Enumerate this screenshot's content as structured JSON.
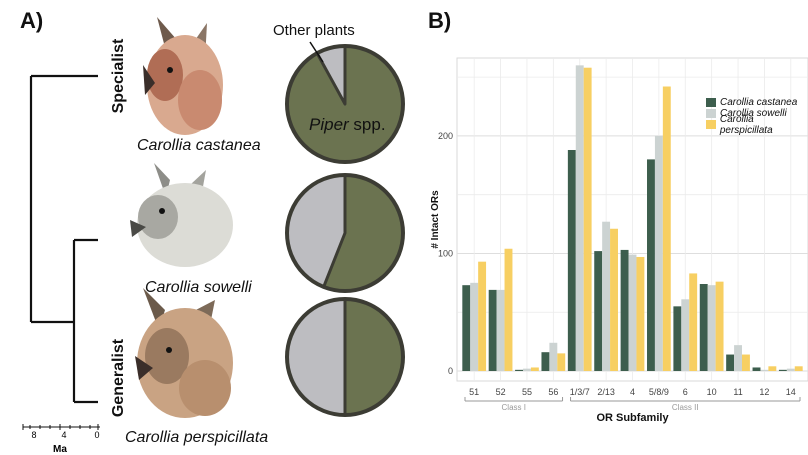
{
  "panel_a": {
    "label": "A)",
    "scale_label": "Ma",
    "scale_ticks": [
      "8",
      "4",
      "0"
    ],
    "specialist_label": "Specialist",
    "generalist_label": "Generalist",
    "pie_other_label": "Other plants",
    "pie_piper_label_italic": "Piper",
    "pie_piper_label_rest": " spp.",
    "species": [
      {
        "name": "Carollia castanea",
        "piper_share": 0.92
      },
      {
        "name": "Carollia sowelli",
        "piper_share": 0.56
      },
      {
        "name": "Carollia perspicillata",
        "piper_share": 0.5
      }
    ],
    "colors": {
      "piper": "#6b7350",
      "other": "#bdbdc1",
      "outline": "#3c3c34"
    }
  },
  "chart_data": {
    "type": "bar",
    "label": "B)",
    "xlabel": "OR Subfamily",
    "ylabel": "# Intact ORs",
    "ylim": [
      0,
      262
    ],
    "yticks": [
      0,
      100,
      200
    ],
    "categories": [
      "51",
      "52",
      "55",
      "56",
      "1/3/7",
      "2/13",
      "4",
      "5/8/9",
      "6",
      "10",
      "11",
      "12",
      "14"
    ],
    "class_labels": [
      {
        "name": "Class I",
        "from": 0,
        "to": 3
      },
      {
        "name": "Class II",
        "from": 4,
        "to": 12
      }
    ],
    "series": [
      {
        "name": "Carollia castanea",
        "color": "#3d5e4d",
        "values": [
          73,
          69,
          1,
          16,
          188,
          102,
          103,
          180,
          55,
          74,
          14,
          3,
          1
        ]
      },
      {
        "name": "Carollia sowelli",
        "color": "#ccd3d2",
        "values": [
          75,
          69,
          2,
          24,
          260,
          127,
          99,
          200,
          61,
          73,
          22,
          1,
          2
        ]
      },
      {
        "name": "Carollia perspicillata",
        "color": "#f7cf62",
        "values": [
          93,
          104,
          3,
          15,
          258,
          121,
          97,
          242,
          83,
          76,
          14,
          4,
          4
        ]
      }
    ],
    "grid": true,
    "legend_position": "top-right"
  }
}
